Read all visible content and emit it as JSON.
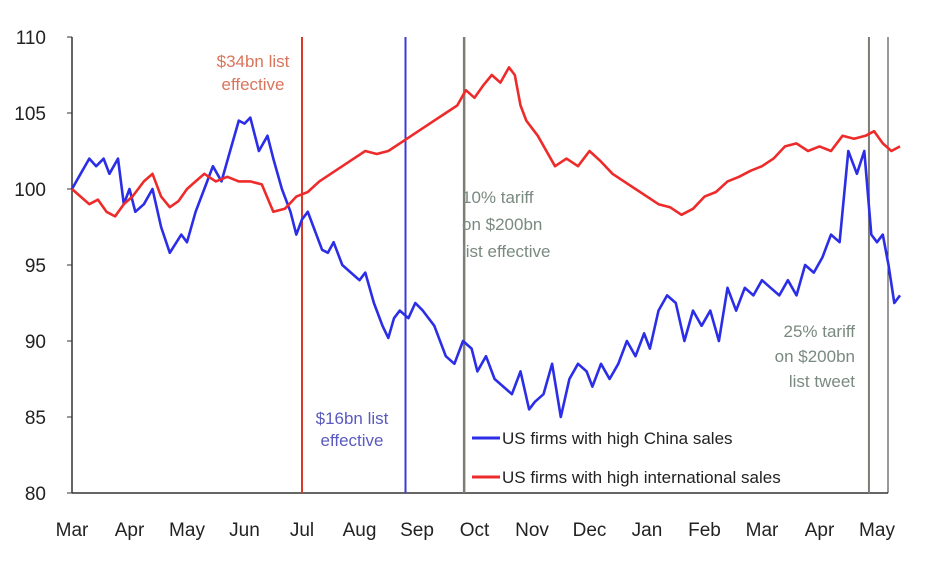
{
  "chart_data": {
    "type": "line",
    "title": "",
    "xlabel": "",
    "ylabel": "",
    "ylim": [
      80,
      110
    ],
    "yticks": [
      80,
      85,
      90,
      95,
      100,
      105,
      110
    ],
    "xticks": [
      "Mar",
      "Apr",
      "May",
      "Jun",
      "Jul",
      "Aug",
      "Sep",
      "Oct",
      "Nov",
      "Dec",
      "Jan",
      "Feb",
      "Mar",
      "Apr",
      "May"
    ],
    "xlim": [
      0,
      14.4
    ],
    "grid": false,
    "legend_position": "bottom-right",
    "colors": {
      "china": "#2b2ee6",
      "international": "#ee2b2b",
      "marker_dark": "#7d7d75",
      "marker_red": "#d93a2a",
      "marker_blue": "#3a3ad6",
      "ann_red": "#d9755c",
      "ann_blue": "#5a5abf",
      "ann_gray": "#7a8a80"
    },
    "series": [
      {
        "name": "US firms with high China sales",
        "color": "#2b2ee6",
        "x": [
          0,
          0.15,
          0.3,
          0.42,
          0.55,
          0.65,
          0.8,
          0.9,
          1.0,
          1.1,
          1.25,
          1.4,
          1.55,
          1.7,
          1.9,
          2.0,
          2.15,
          2.3,
          2.45,
          2.6,
          2.75,
          2.9,
          3.0,
          3.1,
          3.25,
          3.4,
          3.5,
          3.65,
          3.8,
          3.9,
          4.0,
          4.1,
          4.2,
          4.35,
          4.45,
          4.55,
          4.7,
          4.85,
          5.0,
          5.1,
          5.25,
          5.4,
          5.5,
          5.6,
          5.7,
          5.85,
          5.97,
          6.1,
          6.3,
          6.5,
          6.65,
          6.8,
          6.95,
          7.05,
          7.2,
          7.35,
          7.5,
          7.65,
          7.8,
          7.95,
          8.05,
          8.2,
          8.35,
          8.5,
          8.65,
          8.8,
          8.95,
          9.05,
          9.2,
          9.35,
          9.5,
          9.65,
          9.8,
          9.95,
          10.05,
          10.2,
          10.35,
          10.5,
          10.65,
          10.8,
          10.95,
          11.1,
          11.25,
          11.4,
          11.55,
          11.7,
          11.85,
          12.0,
          12.15,
          12.3,
          12.45,
          12.6,
          12.75,
          12.9,
          13.05,
          13.2,
          13.35,
          13.5,
          13.65,
          13.78,
          13.9,
          14.0,
          14.1,
          14.2,
          14.3,
          14.4
        ],
        "values": [
          100,
          101,
          102,
          101.5,
          102,
          101,
          102,
          99,
          100,
          98.5,
          99,
          100,
          97.5,
          95.8,
          97,
          96.5,
          98.5,
          100,
          101.5,
          100.5,
          102.5,
          104.5,
          104.3,
          104.7,
          102.5,
          103.5,
          102,
          100,
          98.5,
          97,
          98,
          98.5,
          97.5,
          96,
          95.8,
          96.5,
          95,
          94.5,
          94,
          94.5,
          92.5,
          91,
          90.2,
          91.5,
          92,
          91.5,
          92.5,
          92,
          91,
          89,
          88.5,
          90,
          89.5,
          88,
          89,
          87.5,
          87,
          86.5,
          88,
          85.5,
          86,
          86.5,
          88.5,
          85,
          87.5,
          88.5,
          88,
          87,
          88.5,
          87.5,
          88.5,
          90,
          89,
          90.5,
          89.5,
          92,
          93,
          92.5,
          90,
          92,
          91,
          92,
          90,
          93.5,
          92,
          93.5,
          93,
          94,
          93.5,
          93,
          94,
          93,
          95,
          94.5,
          95.5,
          97,
          96.5,
          102.5,
          101,
          102.5,
          97,
          96.5,
          97,
          95,
          92.5,
          93
        ]
      },
      {
        "name": "US firms with high international sales",
        "color": "#ee2b2b",
        "x": [
          0,
          0.15,
          0.3,
          0.45,
          0.6,
          0.75,
          0.9,
          1.05,
          1.25,
          1.4,
          1.55,
          1.7,
          1.85,
          2.0,
          2.15,
          2.3,
          2.5,
          2.7,
          2.9,
          3.1,
          3.3,
          3.5,
          3.7,
          3.9,
          4.1,
          4.3,
          4.5,
          4.7,
          4.9,
          5.1,
          5.3,
          5.5,
          5.7,
          5.9,
          6.1,
          6.3,
          6.5,
          6.7,
          6.85,
          7.0,
          7.15,
          7.3,
          7.45,
          7.6,
          7.7,
          7.8,
          7.9,
          8.0,
          8.1,
          8.25,
          8.4,
          8.6,
          8.8,
          9.0,
          9.2,
          9.4,
          9.6,
          9.8,
          10.0,
          10.2,
          10.4,
          10.6,
          10.8,
          11.0,
          11.2,
          11.4,
          11.6,
          11.8,
          12.0,
          12.2,
          12.4,
          12.6,
          12.8,
          13.0,
          13.2,
          13.4,
          13.6,
          13.8,
          13.95,
          14.1,
          14.25,
          14.4
        ],
        "values": [
          100,
          99.5,
          99,
          99.3,
          98.5,
          98.2,
          99,
          99.5,
          100.5,
          101,
          99.5,
          98.8,
          99.2,
          100,
          100.5,
          101,
          100.5,
          100.8,
          100.5,
          100.5,
          100.3,
          98.5,
          98.7,
          99.5,
          99.8,
          100.5,
          101,
          101.5,
          102,
          102.5,
          102.3,
          102.5,
          103,
          103.5,
          104,
          104.5,
          105,
          105.5,
          106.5,
          106,
          106.8,
          107.5,
          107,
          108,
          107.5,
          105.5,
          104.5,
          104,
          103.5,
          102.5,
          101.5,
          102,
          101.5,
          102.5,
          101.8,
          101,
          100.5,
          100,
          99.5,
          99,
          98.8,
          98.3,
          98.7,
          99.5,
          99.8,
          100.5,
          100.8,
          101.2,
          101.5,
          102,
          102.8,
          103,
          102.5,
          102.8,
          102.5,
          103.5,
          103.3,
          103.5,
          103.8,
          103,
          102.5,
          102.8
        ]
      }
    ],
    "markers": [
      {
        "x": 4.0,
        "label_lines": [
          "$34bn list",
          "effective"
        ]
      },
      {
        "x": 5.8,
        "label_lines": [
          "$16bn list",
          "effective"
        ]
      },
      {
        "x": 6.82,
        "label_lines": [
          "10% tariff",
          "on $200bn",
          "list effective"
        ]
      },
      {
        "x": 13.86,
        "label_lines": [
          "25% tariff",
          "on $200bn",
          "list tweet"
        ]
      }
    ]
  }
}
